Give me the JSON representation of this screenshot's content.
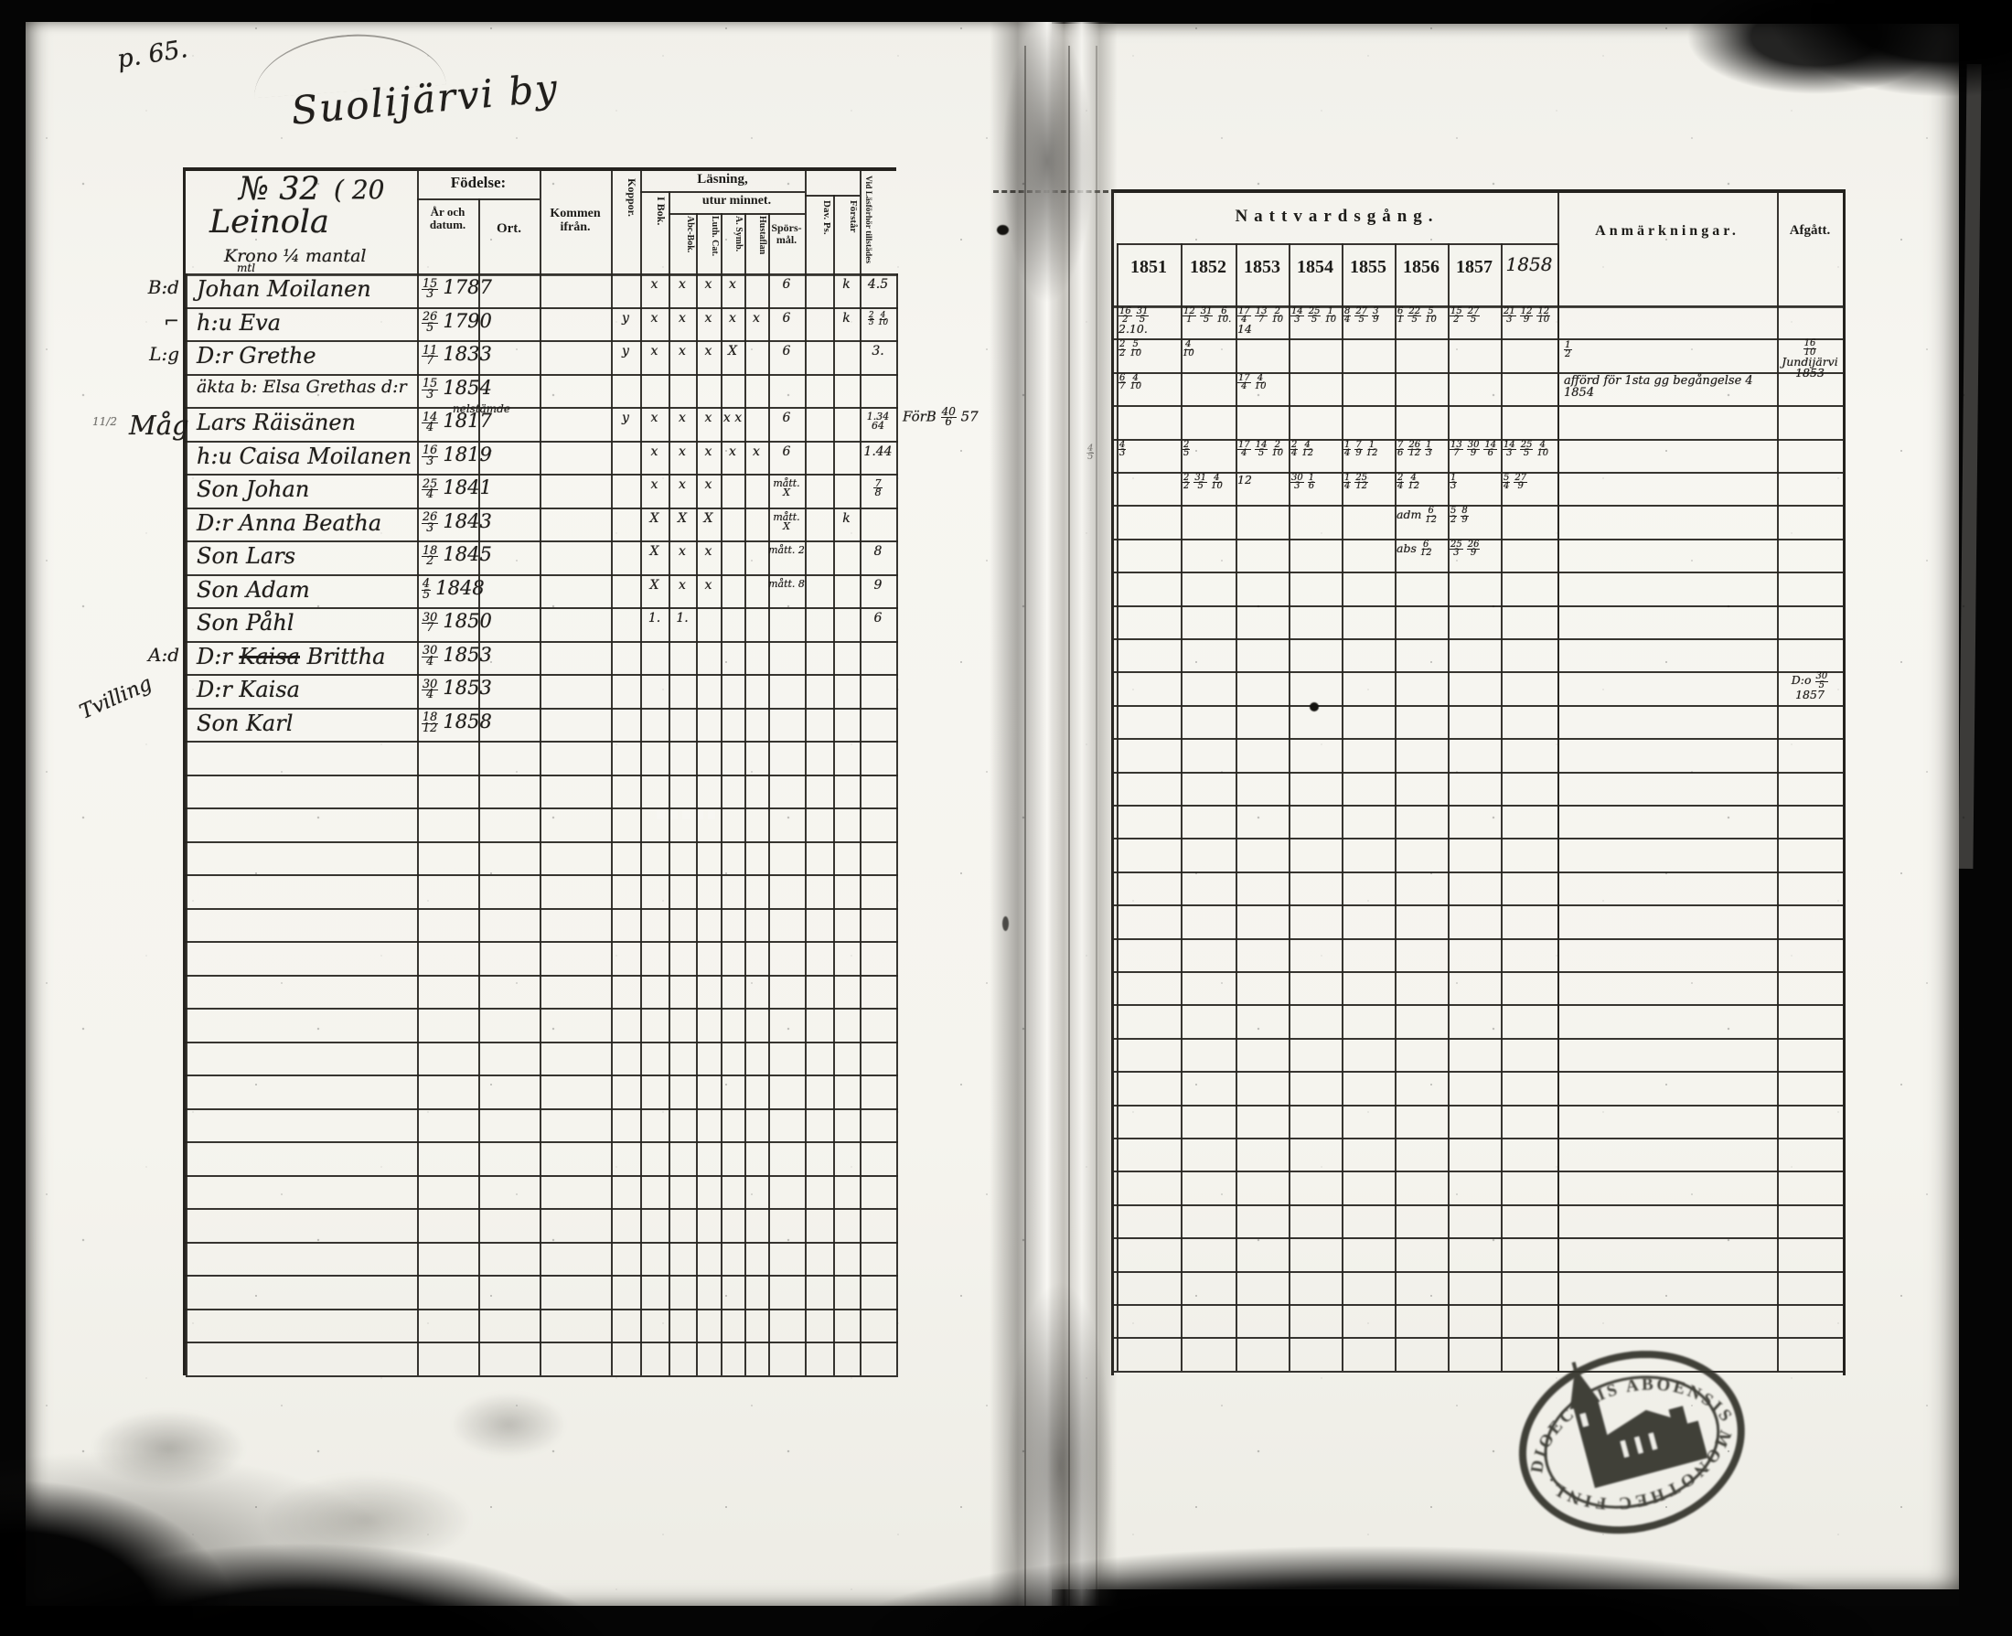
{
  "page": {
    "page_number": "p. 65.",
    "title": "Suolijärvi by"
  },
  "left_table": {
    "household": {
      "number": "№ 32",
      "paren": "( 20",
      "name": "Leinola",
      "tenure": "Krono ¼ mantal"
    },
    "headers": {
      "fodelse": "Födelse:",
      "ar": "År och datum.",
      "ort": "Ort.",
      "kommen": "Kommen ifrån.",
      "koppor": "Koppor.",
      "lasning": "Läsning,",
      "utur": "utur minnet.",
      "ibok": "I Bok.",
      "abc": "Abc-Bok.",
      "luth": "Luth. Cat.",
      "symb": "A. Symb.",
      "hust": "Hustaflan",
      "spors": "Spörs- mål.",
      "dav": "Dav. Ps.",
      "forstar": "Förstår",
      "vid": "Vid Läsförhör tillstädes"
    },
    "rows": [
      {
        "margin": "B:d",
        "above": "mtl",
        "name": "Johan Moilanen",
        "date": "15/3|1787",
        "marks": {
          "ibok": "x",
          "abc": "x",
          "luth": "x",
          "symb": "x",
          "spors": "6",
          "forstar": "k",
          "vid": "4.5"
        }
      },
      {
        "margin": "⌐",
        "name": "h:u Eva",
        "date": "26/5|1790",
        "marks": {
          "koppor": "y",
          "ibok": "x",
          "abc": "x",
          "luth": "x",
          "symb": "x",
          "hust": "x",
          "spors": "6",
          "forstar": "k",
          "vid": "2/5 4/10"
        }
      },
      {
        "margin": "L:g",
        "name": "D:r Grethe",
        "date": "11/7|1833",
        "marks": {
          "koppor": "y",
          "ibok": "x",
          "abc": "x",
          "luth": "x",
          "symb": "X",
          "spors": "6",
          "vid": "3."
        }
      },
      {
        "name": "äkta b: Elsa Grethas d:r",
        "date": "15/3|1854",
        "marks": {}
      },
      {
        "margin": "Måg",
        "margin2": "11/2",
        "name": "Lars Räisänen",
        "ort_note": "nelstämde",
        "date": "14/4|1817",
        "marks": {
          "koppor": "y",
          "ibok": "x",
          "abc": "x",
          "luth": "x",
          "symb": "x x",
          "spors": "6",
          "vid": "1.34 64"
        },
        "side_note": "FörB 40/6 57"
      },
      {
        "name": "h:u Caisa Moilanen",
        "date": "16/3|1819",
        "marks": {
          "ibok": "x",
          "abc": "x",
          "luth": "x",
          "symb": "x",
          "hust": "x",
          "spors": "6",
          "vid": "1.44"
        }
      },
      {
        "name": "Son Johan",
        "date": "25/4|1841",
        "marks": {
          "ibok": "x",
          "abc": "x",
          "luth": "x",
          "spors": "mått. X",
          "vid": "7/8"
        }
      },
      {
        "name": "D:r Anna Beatha",
        "date": "26/3|1843",
        "marks": {
          "ibok": "X",
          "abc": "X",
          "luth": "X",
          "spors": "mått. X",
          "forstar": "k"
        }
      },
      {
        "name": "Son Lars",
        "date": "18/2|1845",
        "marks": {
          "ibok": "X",
          "abc": "x",
          "luth": "x",
          "spors": "mått. 2",
          "vid": "8"
        }
      },
      {
        "name": "Son Adam",
        "date": "4/5|1848",
        "marks": {
          "ibok": "X",
          "abc": "x",
          "luth": "x",
          "spors": "mått. 8",
          "vid": "9"
        }
      },
      {
        "name": "Son Påhl",
        "date": "30/7|1850",
        "marks": {
          "ibok": "1.",
          "abc": "1.",
          "vid": "6"
        }
      },
      {
        "margin": "A:d",
        "name": "D:r Kaisa Brittha",
        "strike": "Kaisa",
        "date": "30/4|1853",
        "marks": {}
      },
      {
        "margin": "Tvilling",
        "name": "D:r Kaisa",
        "date": "30/4|1853",
        "marks": {}
      },
      {
        "name": "Son Karl",
        "date": "18/12|1858",
        "marks": {}
      }
    ],
    "total_rows": 33
  },
  "right_table": {
    "header": "Nattvardsgång.",
    "years": [
      "1851",
      "1852",
      "1853",
      "1854",
      "1855",
      "1856",
      "1857",
      "1858"
    ],
    "anmarkningar": "Anmärkningar.",
    "afgatt": "Afgått.",
    "rows": [
      {
        "i": 0,
        "y": [
          "16/2 31/5 2.10.",
          "12/1 31/5 6/10.",
          "17/4 13/7 2/10 14",
          "14/3 25/5 1/10",
          "8/4 27/5 3/9",
          "6/1 22/5 5/10",
          "15/2 27/5",
          "21/3 12/9 12/10"
        ]
      },
      {
        "i": 1,
        "y": [
          "2/2 5/10",
          "4/10",
          "",
          "",
          "",
          "",
          "",
          ""
        ],
        "remark": "1/2",
        "afgatt": "16/10 Jundijärvi 1853"
      },
      {
        "i": 2,
        "y": [
          "6/7 4/10",
          "",
          "17/4 4/10",
          "",
          "",
          "",
          "",
          ""
        ],
        "remark": "afförd för 1sta gg begångelse 4 1854"
      },
      {
        "i": 4,
        "y": [
          "4/3",
          "2/5",
          "17/4 14/5 2/10",
          "2/4 4/12",
          "1/4 7/9 1/12",
          "7/6 26/12 1/3",
          "13/7 30/9 14/6",
          "14/3 25/5 4/10"
        ],
        "gutter": "4/5"
      },
      {
        "i": 5,
        "y": [
          "",
          "2/2 31/5 4/10",
          "12",
          "30/3 1/6",
          "1/4 25/12",
          "2/4 4/12",
          "1/3",
          "5/4 27/9"
        ]
      },
      {
        "i": 6,
        "y": [
          "",
          "",
          "",
          "",
          "",
          "adm 6/12",
          "5/2 8/9",
          ""
        ]
      },
      {
        "i": 7,
        "y": [
          "",
          "",
          "",
          "",
          "",
          "abs 6/12",
          "25/3 26/9",
          ""
        ]
      },
      {
        "i": 11,
        "y": [
          "",
          "",
          "",
          "",
          "",
          "",
          "",
          ""
        ],
        "afgatt": "D:o 30/5 1857"
      }
    ],
    "total_rows": 32
  },
  "stamp": {
    "ring_top": "DIOECESIS ABOENSIS",
    "ring_bottom": "MONOTHEC FINL.",
    "emblem": "church"
  }
}
